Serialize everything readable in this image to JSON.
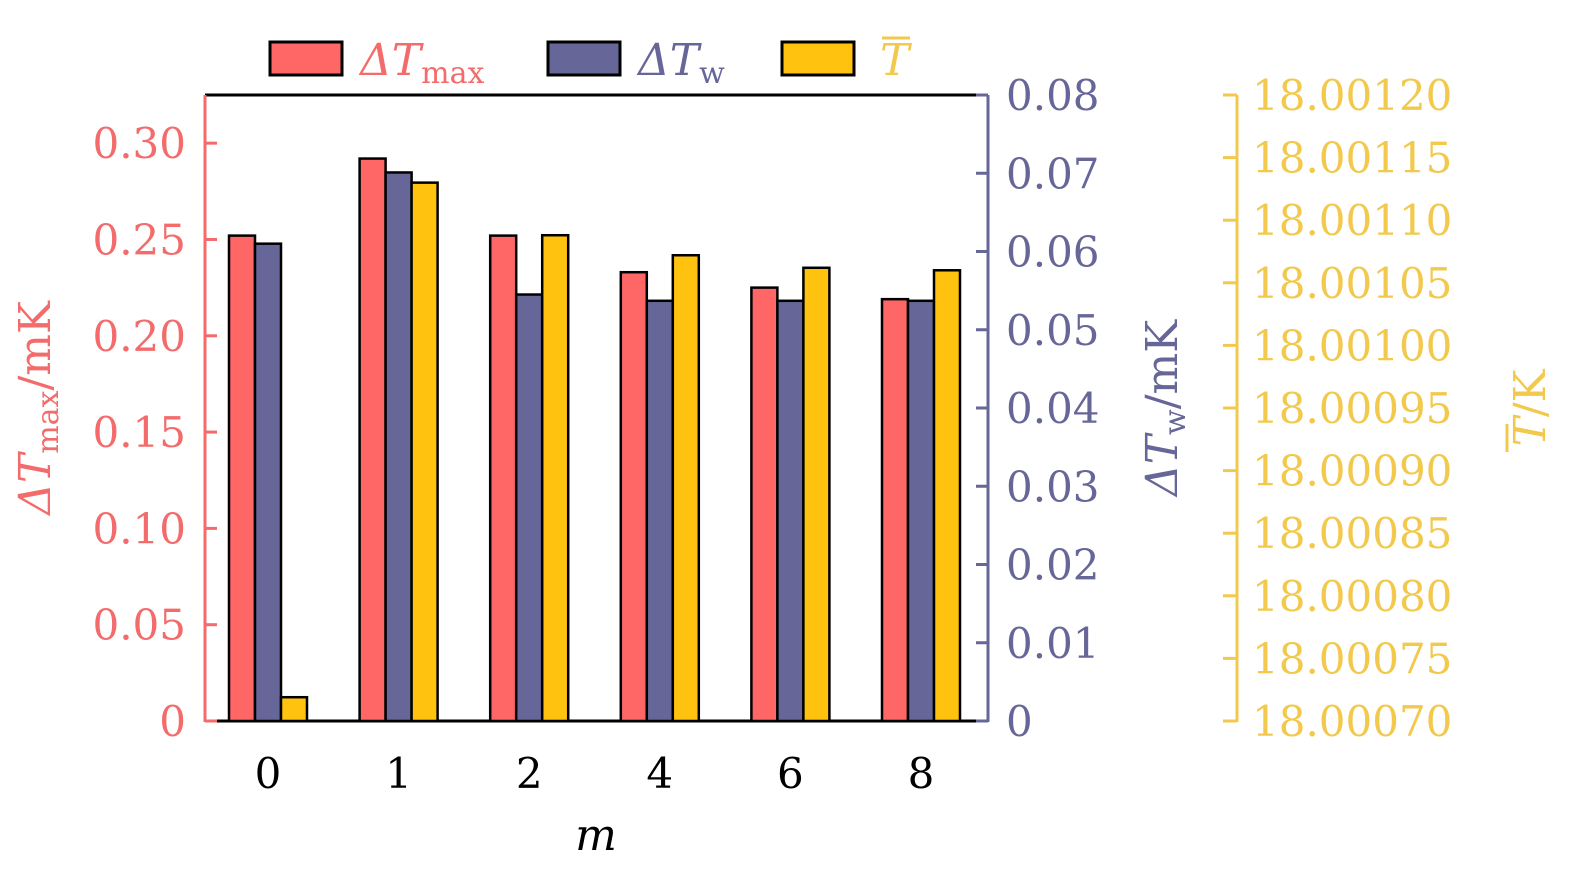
{
  "chart_data": {
    "type": "bar",
    "categories": [
      "0",
      "1",
      "2",
      "4",
      "6",
      "8"
    ],
    "xlabel": "m",
    "legend_position": "top",
    "series": [
      {
        "name": "ΔT_max",
        "name_main": "ΔT",
        "name_sub": "max",
        "axis": "left",
        "color": "#ff6666",
        "values": [
          0.252,
          0.292,
          0.252,
          0.233,
          0.225,
          0.219
        ]
      },
      {
        "name": "ΔT_w",
        "name_main": "ΔT",
        "name_sub": "w",
        "axis": "right",
        "color": "#666699",
        "values": [
          0.061,
          0.0701,
          0.0545,
          0.0537,
          0.0537,
          0.0537
        ]
      },
      {
        "name": "T̄",
        "name_main": "T",
        "name_sub": "",
        "overline": true,
        "axis": "right2",
        "color": "#ffc20e",
        "values": [
          18.000719,
          18.00113,
          18.001088,
          18.001072,
          18.001062,
          18.00106
        ]
      }
    ],
    "axes": {
      "left": {
        "label_main": "ΔT",
        "label_sub": "max",
        "label_unit": "/mK",
        "color": "#f36b6b",
        "ylim": [
          0,
          0.325
        ],
        "ticks": [
          0,
          0.05,
          0.1,
          0.15,
          0.2,
          0.25,
          0.3
        ],
        "tick_labels": [
          "0",
          "0.05",
          "0.10",
          "0.15",
          "0.20",
          "0.25",
          "0.30"
        ]
      },
      "right": {
        "label_main": "ΔT",
        "label_sub": "w",
        "label_unit": "/mK",
        "color": "#666699",
        "ylim": [
          0,
          0.08
        ],
        "ticks": [
          0,
          0.01,
          0.02,
          0.03,
          0.04,
          0.05,
          0.06,
          0.07,
          0.08
        ],
        "tick_labels": [
          "0",
          "0.01",
          "0.02",
          "0.03",
          "0.04",
          "0.05",
          "0.06",
          "0.07",
          "0.08"
        ]
      },
      "right2": {
        "label_main": "T",
        "label_sub": "",
        "label_unit": "/K",
        "overline": true,
        "color": "#f2c94c",
        "ylim": [
          18.0007,
          18.0012
        ],
        "ticks": [
          18.0007,
          18.00075,
          18.0008,
          18.00085,
          18.0009,
          18.00095,
          18.001,
          18.00105,
          18.0011,
          18.00115,
          18.0012
        ],
        "tick_labels": [
          "18.00070",
          "18.00075",
          "18.00080",
          "18.00085",
          "18.00090",
          "18.00095",
          "18.00100",
          "18.00105",
          "18.00110",
          "18.00115",
          "18.00120"
        ]
      }
    }
  }
}
